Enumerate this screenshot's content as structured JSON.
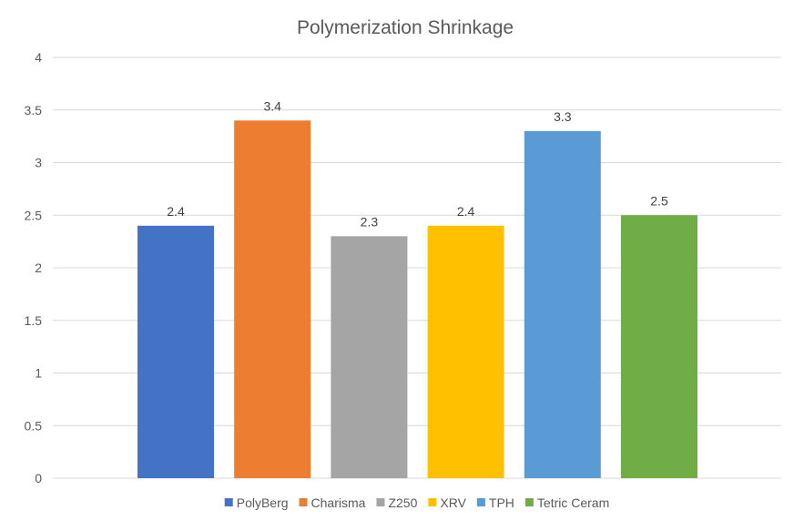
{
  "chart_data": {
    "type": "bar",
    "title": "Polymerization Shrinkage",
    "xlabel": "",
    "ylabel": "",
    "ylim": [
      0,
      4
    ],
    "yticks": [
      "0",
      "0.5",
      "1",
      "1.5",
      "2",
      "2.5",
      "3",
      "3.5",
      "4"
    ],
    "grid": true,
    "legend_position": "bottom",
    "series": [
      {
        "name": "PolyBerg",
        "value": 2.4,
        "label": "2.4",
        "color": "#4472C4"
      },
      {
        "name": "Charisma",
        "value": 3.4,
        "label": "3.4",
        "color": "#ED7D31"
      },
      {
        "name": "Z250",
        "value": 2.3,
        "label": "2.3",
        "color": "#A5A5A5"
      },
      {
        "name": "XRV",
        "value": 2.4,
        "label": "2.4",
        "color": "#FFC000"
      },
      {
        "name": "TPH",
        "value": 3.3,
        "label": "3.3",
        "color": "#5B9BD5"
      },
      {
        "name": "Tetric Ceram",
        "value": 2.5,
        "label": "2.5",
        "color": "#70AD47"
      }
    ]
  }
}
